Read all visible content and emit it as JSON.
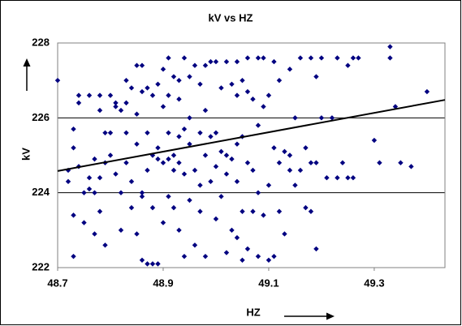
{
  "chart_data": {
    "type": "scatter",
    "title": "kV vs HZ",
    "x_label": "HZ",
    "y_label": "kV",
    "color": "#000080",
    "x": [
      48.7,
      48.72,
      48.72,
      48.73,
      48.73,
      48.73,
      48.73,
      48.74,
      48.74,
      48.74,
      48.75,
      48.75,
      48.76,
      48.76,
      48.76,
      48.77,
      48.77,
      48.77,
      48.78,
      48.78,
      48.78,
      48.78,
      48.79,
      48.79,
      48.79,
      48.8,
      48.8,
      48.8,
      48.81,
      48.81,
      48.81,
      48.82,
      48.82,
      48.82,
      48.83,
      48.83,
      48.83,
      48.83,
      48.84,
      48.84,
      48.84,
      48.85,
      48.85,
      48.85,
      48.85,
      48.86,
      48.86,
      48.86,
      48.86,
      48.86,
      48.87,
      48.87,
      48.87,
      48.87,
      48.88,
      48.88,
      48.88,
      48.88,
      48.89,
      48.89,
      48.89,
      48.89,
      48.9,
      48.9,
      48.9,
      48.9,
      48.91,
      48.91,
      48.91,
      48.91,
      48.91,
      48.92,
      48.92,
      48.92,
      48.92,
      48.93,
      48.93,
      48.93,
      48.93,
      48.93,
      48.94,
      48.94,
      48.94,
      48.94,
      48.95,
      48.95,
      48.95,
      48.95,
      48.96,
      48.96,
      48.96,
      48.97,
      48.97,
      48.97,
      48.97,
      48.98,
      48.98,
      48.98,
      48.98,
      48.99,
      48.99,
      48.99,
      49.0,
      49.0,
      49.0,
      49.0,
      49.01,
      49.01,
      49.01,
      49.02,
      49.02,
      49.02,
      49.02,
      49.03,
      49.03,
      49.03,
      49.04,
      49.04,
      49.04,
      49.04,
      49.04,
      49.05,
      49.05,
      49.05,
      49.05,
      49.06,
      49.06,
      49.06,
      49.06,
      49.07,
      49.07,
      49.07,
      49.08,
      49.08,
      49.08,
      49.08,
      49.09,
      49.09,
      49.09,
      49.1,
      49.1,
      49.1,
      49.11,
      49.11,
      49.11,
      49.12,
      49.12,
      49.12,
      49.13,
      49.13,
      49.14,
      49.14,
      49.14,
      49.15,
      49.15,
      49.16,
      49.16,
      49.17,
      49.17,
      49.18,
      49.18,
      49.18,
      49.19,
      49.19,
      49.19,
      49.2,
      49.2,
      49.21,
      49.22,
      49.23,
      49.23,
      49.24,
      49.25,
      49.25,
      49.26,
      49.26,
      49.27,
      49.3,
      49.31,
      49.33,
      49.33,
      49.34,
      49.35,
      49.37,
      49.4
    ],
    "values": [
      227.0,
      224.6,
      224.3,
      225.7,
      225.2,
      223.4,
      222.3,
      226.6,
      226.4,
      224.7,
      224.0,
      223.2,
      224.1,
      224.4,
      226.6,
      222.9,
      224.9,
      224.0,
      226.6,
      226.2,
      224.4,
      223.5,
      225.6,
      224.8,
      222.6,
      225.6,
      226.6,
      225.0,
      226.4,
      226.3,
      224.5,
      226.2,
      224.0,
      223.0,
      227.0,
      226.4,
      225.6,
      224.8,
      226.8,
      224.3,
      223.6,
      227.4,
      226.1,
      225.3,
      222.9,
      227.4,
      226.7,
      224.0,
      223.9,
      222.2,
      226.8,
      225.6,
      224.6,
      222.1,
      226.6,
      225.0,
      223.6,
      222.1,
      226.9,
      225.2,
      224.9,
      222.1,
      227.3,
      226.3,
      224.8,
      223.2,
      227.6,
      226.6,
      225.6,
      224.9,
      223.9,
      227.1,
      225.0,
      224.6,
      223.6,
      227.0,
      226.5,
      225.5,
      224.8,
      223.0,
      227.6,
      225.7,
      224.5,
      222.3,
      227.1,
      226.0,
      225.3,
      223.8,
      227.4,
      224.6,
      222.6,
      226.9,
      225.6,
      224.2,
      223.5,
      227.4,
      226.2,
      225.0,
      222.3,
      227.5,
      225.5,
      224.3,
      227.5,
      225.6,
      224.7,
      223.3,
      226.8,
      225.1,
      223.9,
      227.5,
      225.0,
      224.5,
      222.4,
      226.9,
      224.9,
      223.0,
      227.5,
      226.6,
      225.3,
      224.3,
      222.8,
      227.0,
      225.5,
      223.5,
      222.2,
      227.6,
      226.7,
      224.8,
      222.5,
      226.5,
      224.6,
      223.5,
      227.6,
      225.8,
      224.0,
      222.3,
      227.6,
      226.3,
      223.4,
      226.6,
      224.2,
      222.2,
      227.5,
      225.2,
      222.3,
      227.0,
      224.8,
      223.5,
      225.1,
      222.9,
      227.3,
      225.0,
      224.6,
      226.0,
      224.2,
      227.6,
      224.6,
      225.2,
      223.6,
      227.6,
      224.8,
      223.5,
      227.1,
      224.8,
      222.5,
      227.6,
      226.0,
      224.4,
      226.0,
      227.6,
      224.4,
      224.8,
      227.4,
      224.4,
      227.6,
      224.4,
      227.6,
      225.4,
      224.8,
      227.6,
      227.9,
      226.3,
      224.8,
      224.7,
      226.7
    ],
    "trendline": {
      "x": [
        48.7,
        49.434
      ],
      "values": [
        224.58,
        226.48
      ],
      "color": "#000000"
    },
    "xlim": [
      48.7,
      49.434
    ],
    "xticks": [
      48.7,
      48.9,
      49.1,
      49.3
    ],
    "ylim": [
      222,
      228
    ],
    "yticks": [
      222,
      224,
      226,
      228
    ],
    "grid": true
  }
}
